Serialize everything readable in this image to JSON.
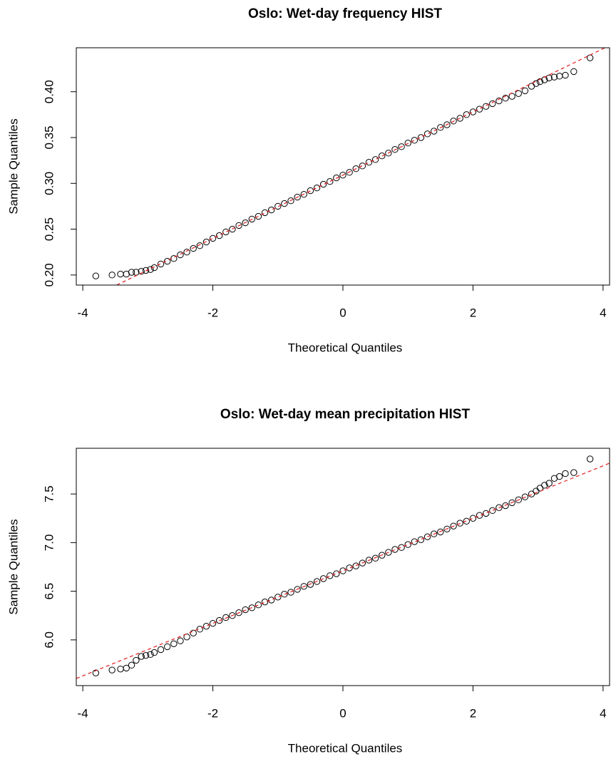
{
  "chart_data": [
    {
      "type": "scatter",
      "title": "Oslo: Wet-day frequency HIST",
      "x_label": "Theoretical Quantiles",
      "y_label": "Sample Quantiles",
      "x": [
        -3.8,
        -3.55,
        -3.42,
        -3.33,
        -3.25,
        -3.18,
        -3.1,
        -3.03,
        -2.96,
        -2.9,
        -2.8,
        -2.7,
        -2.6,
        -2.5,
        -2.4,
        -2.3,
        -2.2,
        -2.1,
        -2.0,
        -1.9,
        -1.8,
        -1.7,
        -1.6,
        -1.5,
        -1.4,
        -1.3,
        -1.2,
        -1.1,
        -1.0,
        -0.9,
        -0.8,
        -0.7,
        -0.6,
        -0.5,
        -0.4,
        -0.3,
        -0.2,
        -0.1,
        0,
        0.1,
        0.2,
        0.3,
        0.4,
        0.5,
        0.6,
        0.7,
        0.8,
        0.9,
        1.0,
        1.1,
        1.2,
        1.3,
        1.4,
        1.5,
        1.6,
        1.7,
        1.8,
        1.9,
        2.0,
        2.1,
        2.2,
        2.3,
        2.4,
        2.5,
        2.6,
        2.7,
        2.8,
        2.9,
        2.97,
        3.03,
        3.1,
        3.17,
        3.25,
        3.33,
        3.42,
        3.55,
        3.8
      ],
      "values": [
        0.199,
        0.2,
        0.201,
        0.201,
        0.203,
        0.203,
        0.204,
        0.205,
        0.206,
        0.208,
        0.212,
        0.215,
        0.218,
        0.222,
        0.225,
        0.229,
        0.232,
        0.236,
        0.24,
        0.243,
        0.247,
        0.25,
        0.254,
        0.257,
        0.261,
        0.264,
        0.268,
        0.271,
        0.275,
        0.278,
        0.281,
        0.285,
        0.288,
        0.292,
        0.295,
        0.299,
        0.302,
        0.306,
        0.309,
        0.312,
        0.316,
        0.319,
        0.323,
        0.326,
        0.33,
        0.333,
        0.337,
        0.34,
        0.344,
        0.347,
        0.35,
        0.354,
        0.357,
        0.361,
        0.364,
        0.368,
        0.371,
        0.375,
        0.378,
        0.381,
        0.384,
        0.387,
        0.39,
        0.393,
        0.395,
        0.398,
        0.401,
        0.406,
        0.409,
        0.411,
        0.413,
        0.415,
        0.416,
        0.417,
        0.418,
        0.422,
        0.437
      ],
      "color": "#000000",
      "reference_line": {
        "intercept": 0.309,
        "slope": 0.0345,
        "color": "#e41a1c"
      },
      "xlim": [
        -4.1,
        4.1
      ],
      "xticks": [
        -4,
        -2,
        0,
        2,
        4
      ],
      "ylim": [
        0.189,
        0.448
      ],
      "yticks": [
        {
          "value": 0.2,
          "label": "0.20"
        },
        0.25,
        {
          "value": 0.3,
          "label": "0.30"
        },
        0.35,
        {
          "value": 0.4,
          "label": "0.40"
        }
      ]
    },
    {
      "type": "scatter",
      "title": "Oslo: Wet-day mean precipitation HIST",
      "x_label": "Theoretical Quantiles",
      "y_label": "Sample Quantiles",
      "x": [
        -3.8,
        -3.55,
        -3.42,
        -3.33,
        -3.25,
        -3.18,
        -3.1,
        -3.03,
        -2.96,
        -2.9,
        -2.8,
        -2.7,
        -2.6,
        -2.5,
        -2.4,
        -2.3,
        -2.2,
        -2.1,
        -2.0,
        -1.9,
        -1.8,
        -1.7,
        -1.6,
        -1.5,
        -1.4,
        -1.3,
        -1.2,
        -1.1,
        -1.0,
        -0.9,
        -0.8,
        -0.7,
        -0.6,
        -0.5,
        -0.4,
        -0.3,
        -0.2,
        -0.1,
        0,
        0.1,
        0.2,
        0.3,
        0.4,
        0.5,
        0.6,
        0.7,
        0.8,
        0.9,
        1.0,
        1.1,
        1.2,
        1.3,
        1.4,
        1.5,
        1.6,
        1.7,
        1.8,
        1.9,
        2.0,
        2.1,
        2.2,
        2.3,
        2.4,
        2.5,
        2.6,
        2.7,
        2.8,
        2.9,
        2.97,
        3.03,
        3.1,
        3.17,
        3.25,
        3.33,
        3.42,
        3.55,
        3.8
      ],
      "values": [
        5.66,
        5.69,
        5.7,
        5.71,
        5.74,
        5.79,
        5.83,
        5.84,
        5.85,
        5.87,
        5.9,
        5.93,
        5.96,
        5.99,
        6.03,
        6.07,
        6.11,
        6.14,
        6.17,
        6.2,
        6.23,
        6.25,
        6.28,
        6.31,
        6.33,
        6.36,
        6.39,
        6.41,
        6.44,
        6.47,
        6.49,
        6.52,
        6.55,
        6.57,
        6.6,
        6.63,
        6.66,
        6.68,
        6.71,
        6.74,
        6.76,
        6.79,
        6.82,
        6.84,
        6.87,
        6.9,
        6.93,
        6.95,
        6.98,
        7.01,
        7.03,
        7.06,
        7.09,
        7.11,
        7.14,
        7.17,
        7.2,
        7.22,
        7.25,
        7.28,
        7.3,
        7.33,
        7.36,
        7.38,
        7.41,
        7.44,
        7.47,
        7.5,
        7.53,
        7.56,
        7.59,
        7.61,
        7.66,
        7.68,
        7.71,
        7.72,
        7.86
      ],
      "color": "#000000",
      "reference_line": {
        "intercept": 6.71,
        "slope": 0.27,
        "color": "#e41a1c"
      },
      "xlim": [
        -4.1,
        4.1
      ],
      "xticks": [
        -4,
        -2,
        0,
        2,
        4
      ],
      "ylim": [
        5.53,
        7.97
      ],
      "yticks": [
        {
          "value": 6,
          "label": "6.0"
        },
        6.5,
        {
          "value": 7,
          "label": "7.0"
        },
        7.5
      ]
    }
  ]
}
